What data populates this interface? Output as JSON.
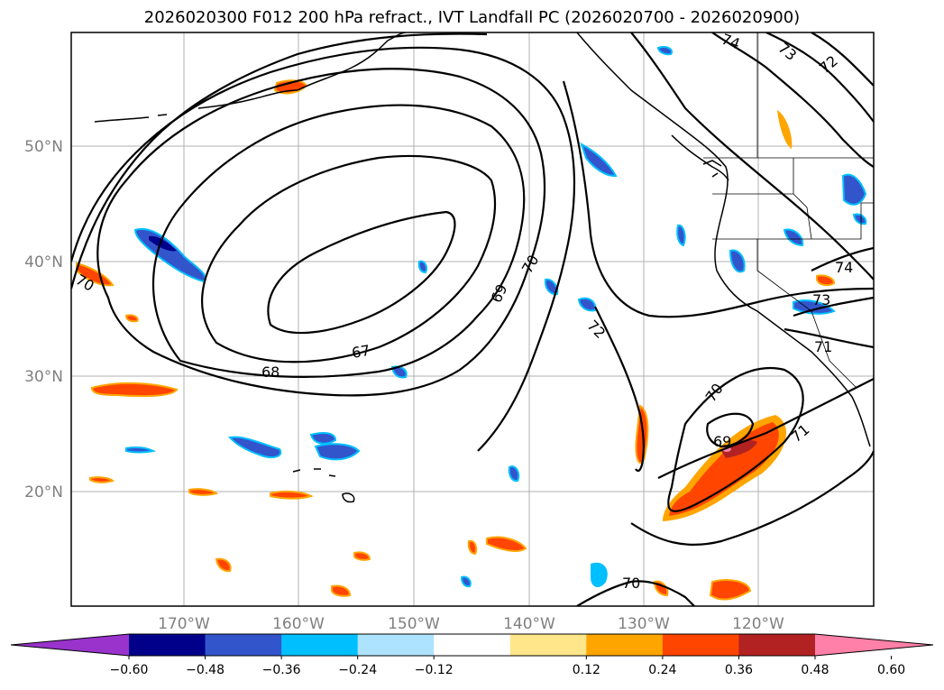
{
  "title": "2026020300 F012 200 hPa refract., IVT Landfall PC (2026020700 - 2026020900)",
  "lat_labels": [
    "50°N",
    "40°N",
    "30°N",
    "20°N"
  ],
  "lon_labels": [
    "170°W",
    "160°W",
    "150°W",
    "140°W",
    "130°W",
    "120°W"
  ],
  "contour_labels": [
    "74",
    "73",
    "72",
    "70",
    "69",
    "67",
    "68",
    "72",
    "74",
    "73",
    "71",
    "70",
    "69",
    "71",
    "70"
  ],
  "colorbar": {
    "colors": [
      "#9933cc",
      "#00008b",
      "#3355cc",
      "#00bfff",
      "#aee3ff",
      "#ffffff",
      "#ffe68a",
      "#ffa500",
      "#ff4500",
      "#b22222",
      "#ff80a8"
    ],
    "tick_labels": [
      "−0.60",
      "−0.48",
      "−0.36",
      "−0.24",
      "−0.12",
      "0.12",
      "0.24",
      "0.36",
      "0.48",
      "0.60"
    ]
  },
  "colors": {
    "grid": "#b0b0b0",
    "contour": "#000000",
    "coast": "#000000"
  }
}
